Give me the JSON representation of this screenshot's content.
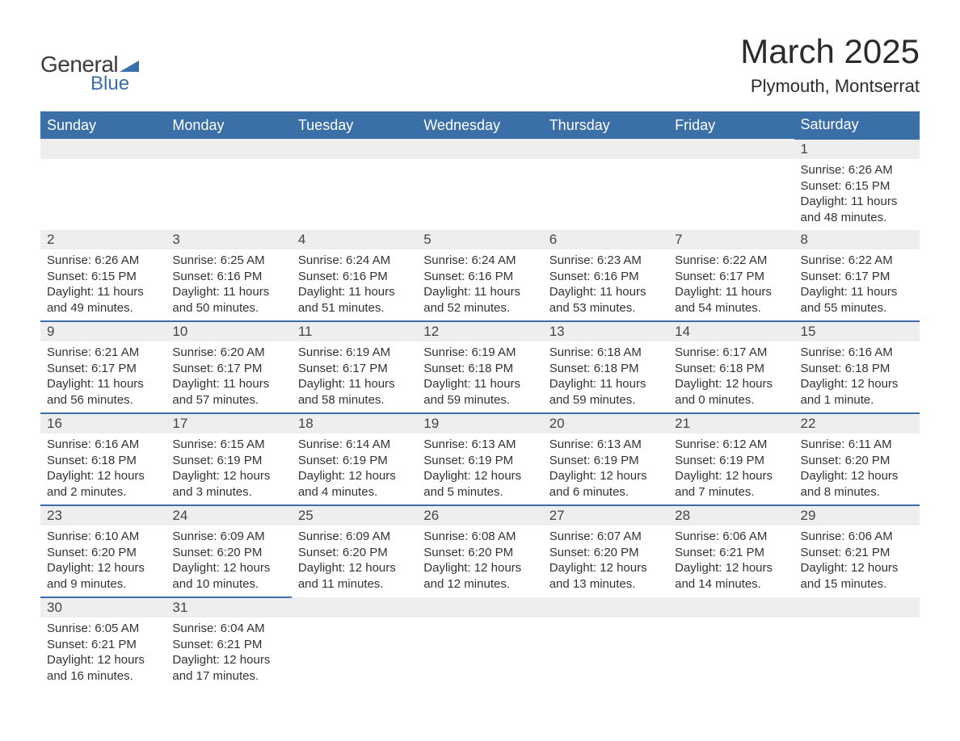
{
  "logo": {
    "text1": "General",
    "text2": "Blue",
    "shape_color": "#3b6fa8",
    "text1_color": "#3a3a3a",
    "text2_color": "#3b6fa8"
  },
  "title": "March 2025",
  "location": "Plymouth, Montserrat",
  "colors": {
    "header_bg": "#3b6fa8",
    "header_text": "#ffffff",
    "daynum_bg": "#eeeeee",
    "daynum_text": "#444444",
    "body_text": "#333333",
    "row_border": "#3b6fa8",
    "page_bg": "#ffffff"
  },
  "typography": {
    "title_fontsize": 42,
    "location_fontsize": 22,
    "dow_fontsize": 18,
    "daynum_fontsize": 17,
    "body_fontsize": 15
  },
  "layout": {
    "columns": 7,
    "rows": 6,
    "first_day_column_index": 6
  },
  "days_of_week": [
    "Sunday",
    "Monday",
    "Tuesday",
    "Wednesday",
    "Thursday",
    "Friday",
    "Saturday"
  ],
  "weeks": [
    [
      null,
      null,
      null,
      null,
      null,
      null,
      {
        "num": "1",
        "sunrise": "Sunrise: 6:26 AM",
        "sunset": "Sunset: 6:15 PM",
        "daylight1": "Daylight: 11 hours",
        "daylight2": "and 48 minutes."
      }
    ],
    [
      {
        "num": "2",
        "sunrise": "Sunrise: 6:26 AM",
        "sunset": "Sunset: 6:15 PM",
        "daylight1": "Daylight: 11 hours",
        "daylight2": "and 49 minutes."
      },
      {
        "num": "3",
        "sunrise": "Sunrise: 6:25 AM",
        "sunset": "Sunset: 6:16 PM",
        "daylight1": "Daylight: 11 hours",
        "daylight2": "and 50 minutes."
      },
      {
        "num": "4",
        "sunrise": "Sunrise: 6:24 AM",
        "sunset": "Sunset: 6:16 PM",
        "daylight1": "Daylight: 11 hours",
        "daylight2": "and 51 minutes."
      },
      {
        "num": "5",
        "sunrise": "Sunrise: 6:24 AM",
        "sunset": "Sunset: 6:16 PM",
        "daylight1": "Daylight: 11 hours",
        "daylight2": "and 52 minutes."
      },
      {
        "num": "6",
        "sunrise": "Sunrise: 6:23 AM",
        "sunset": "Sunset: 6:16 PM",
        "daylight1": "Daylight: 11 hours",
        "daylight2": "and 53 minutes."
      },
      {
        "num": "7",
        "sunrise": "Sunrise: 6:22 AM",
        "sunset": "Sunset: 6:17 PM",
        "daylight1": "Daylight: 11 hours",
        "daylight2": "and 54 minutes."
      },
      {
        "num": "8",
        "sunrise": "Sunrise: 6:22 AM",
        "sunset": "Sunset: 6:17 PM",
        "daylight1": "Daylight: 11 hours",
        "daylight2": "and 55 minutes."
      }
    ],
    [
      {
        "num": "9",
        "sunrise": "Sunrise: 6:21 AM",
        "sunset": "Sunset: 6:17 PM",
        "daylight1": "Daylight: 11 hours",
        "daylight2": "and 56 minutes."
      },
      {
        "num": "10",
        "sunrise": "Sunrise: 6:20 AM",
        "sunset": "Sunset: 6:17 PM",
        "daylight1": "Daylight: 11 hours",
        "daylight2": "and 57 minutes."
      },
      {
        "num": "11",
        "sunrise": "Sunrise: 6:19 AM",
        "sunset": "Sunset: 6:17 PM",
        "daylight1": "Daylight: 11 hours",
        "daylight2": "and 58 minutes."
      },
      {
        "num": "12",
        "sunrise": "Sunrise: 6:19 AM",
        "sunset": "Sunset: 6:18 PM",
        "daylight1": "Daylight: 11 hours",
        "daylight2": "and 59 minutes."
      },
      {
        "num": "13",
        "sunrise": "Sunrise: 6:18 AM",
        "sunset": "Sunset: 6:18 PM",
        "daylight1": "Daylight: 11 hours",
        "daylight2": "and 59 minutes."
      },
      {
        "num": "14",
        "sunrise": "Sunrise: 6:17 AM",
        "sunset": "Sunset: 6:18 PM",
        "daylight1": "Daylight: 12 hours",
        "daylight2": "and 0 minutes."
      },
      {
        "num": "15",
        "sunrise": "Sunrise: 6:16 AM",
        "sunset": "Sunset: 6:18 PM",
        "daylight1": "Daylight: 12 hours",
        "daylight2": "and 1 minute."
      }
    ],
    [
      {
        "num": "16",
        "sunrise": "Sunrise: 6:16 AM",
        "sunset": "Sunset: 6:18 PM",
        "daylight1": "Daylight: 12 hours",
        "daylight2": "and 2 minutes."
      },
      {
        "num": "17",
        "sunrise": "Sunrise: 6:15 AM",
        "sunset": "Sunset: 6:19 PM",
        "daylight1": "Daylight: 12 hours",
        "daylight2": "and 3 minutes."
      },
      {
        "num": "18",
        "sunrise": "Sunrise: 6:14 AM",
        "sunset": "Sunset: 6:19 PM",
        "daylight1": "Daylight: 12 hours",
        "daylight2": "and 4 minutes."
      },
      {
        "num": "19",
        "sunrise": "Sunrise: 6:13 AM",
        "sunset": "Sunset: 6:19 PM",
        "daylight1": "Daylight: 12 hours",
        "daylight2": "and 5 minutes."
      },
      {
        "num": "20",
        "sunrise": "Sunrise: 6:13 AM",
        "sunset": "Sunset: 6:19 PM",
        "daylight1": "Daylight: 12 hours",
        "daylight2": "and 6 minutes."
      },
      {
        "num": "21",
        "sunrise": "Sunrise: 6:12 AM",
        "sunset": "Sunset: 6:19 PM",
        "daylight1": "Daylight: 12 hours",
        "daylight2": "and 7 minutes."
      },
      {
        "num": "22",
        "sunrise": "Sunrise: 6:11 AM",
        "sunset": "Sunset: 6:20 PM",
        "daylight1": "Daylight: 12 hours",
        "daylight2": "and 8 minutes."
      }
    ],
    [
      {
        "num": "23",
        "sunrise": "Sunrise: 6:10 AM",
        "sunset": "Sunset: 6:20 PM",
        "daylight1": "Daylight: 12 hours",
        "daylight2": "and 9 minutes."
      },
      {
        "num": "24",
        "sunrise": "Sunrise: 6:09 AM",
        "sunset": "Sunset: 6:20 PM",
        "daylight1": "Daylight: 12 hours",
        "daylight2": "and 10 minutes."
      },
      {
        "num": "25",
        "sunrise": "Sunrise: 6:09 AM",
        "sunset": "Sunset: 6:20 PM",
        "daylight1": "Daylight: 12 hours",
        "daylight2": "and 11 minutes."
      },
      {
        "num": "26",
        "sunrise": "Sunrise: 6:08 AM",
        "sunset": "Sunset: 6:20 PM",
        "daylight1": "Daylight: 12 hours",
        "daylight2": "and 12 minutes."
      },
      {
        "num": "27",
        "sunrise": "Sunrise: 6:07 AM",
        "sunset": "Sunset: 6:20 PM",
        "daylight1": "Daylight: 12 hours",
        "daylight2": "and 13 minutes."
      },
      {
        "num": "28",
        "sunrise": "Sunrise: 6:06 AM",
        "sunset": "Sunset: 6:21 PM",
        "daylight1": "Daylight: 12 hours",
        "daylight2": "and 14 minutes."
      },
      {
        "num": "29",
        "sunrise": "Sunrise: 6:06 AM",
        "sunset": "Sunset: 6:21 PM",
        "daylight1": "Daylight: 12 hours",
        "daylight2": "and 15 minutes."
      }
    ],
    [
      {
        "num": "30",
        "sunrise": "Sunrise: 6:05 AM",
        "sunset": "Sunset: 6:21 PM",
        "daylight1": "Daylight: 12 hours",
        "daylight2": "and 16 minutes."
      },
      {
        "num": "31",
        "sunrise": "Sunrise: 6:04 AM",
        "sunset": "Sunset: 6:21 PM",
        "daylight1": "Daylight: 12 hours",
        "daylight2": "and 17 minutes."
      },
      null,
      null,
      null,
      null,
      null
    ]
  ]
}
